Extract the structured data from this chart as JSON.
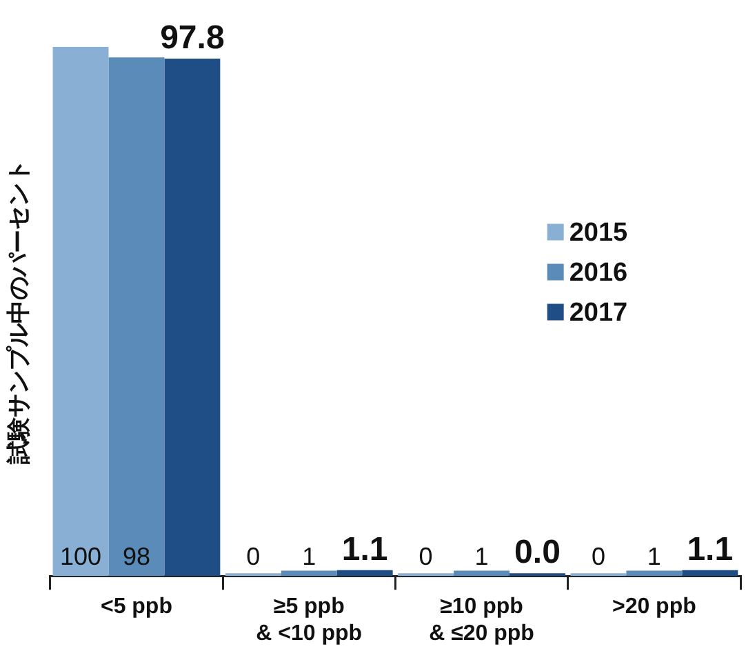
{
  "chart_data": {
    "type": "bar",
    "ylabel": "試験サンプル中のパーセント",
    "categories": [
      "<5 ppb",
      "≥5 ppb\n& <10 ppb",
      "≥10 ppb\n& ≤20 ppb",
      ">20 ppb"
    ],
    "series": [
      {
        "name": "2015",
        "color": "#8aafd4",
        "values": [
          100,
          0,
          0,
          0
        ],
        "value_labels": [
          "100",
          "0",
          "0",
          "0"
        ]
      },
      {
        "name": "2016",
        "color": "#5b8bb8",
        "values": [
          98,
          1,
          1,
          1
        ],
        "value_labels": [
          "98",
          "1",
          "1",
          "1"
        ]
      },
      {
        "name": "2017",
        "color": "#1f4e87",
        "values": [
          97.8,
          1.1,
          0.0,
          1.1
        ],
        "value_labels": [
          "97.8",
          "1.1",
          "0.0",
          "1.1"
        ]
      }
    ],
    "ylim": [
      0,
      100
    ],
    "tick_labels": "x",
    "grid": false,
    "legend": "right"
  }
}
